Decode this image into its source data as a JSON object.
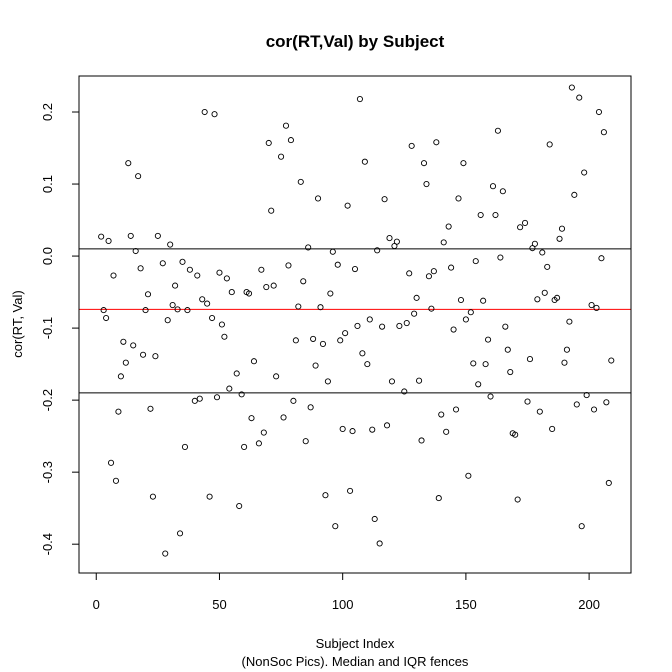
{
  "chart_data": {
    "type": "scatter",
    "title": "cor(RT,Val) by Subject",
    "xlabel": "Subject Index",
    "xlabel_sub": "(NonSoc Pics). Median and IQR fences",
    "ylabel": "cor(RT, Val)",
    "xlim": [
      -7,
      217
    ],
    "ylim": [
      -0.44,
      0.25
    ],
    "xticks": [
      0,
      50,
      100,
      150,
      200
    ],
    "yticks": [
      -0.4,
      -0.3,
      -0.2,
      -0.1,
      0.0,
      0.1,
      0.2
    ],
    "ytick_labels": [
      "-0.4",
      "-0.3",
      "-0.2",
      "-0.1",
      "0.0",
      "0.1",
      "0.2"
    ],
    "grid": false,
    "point_style": "open-circle",
    "reference_lines": [
      {
        "name": "upper IQR fence",
        "y": 0.01,
        "color": "#000000"
      },
      {
        "name": "median",
        "y": -0.074,
        "color": "#ff0000"
      },
      {
        "name": "lower IQR fence",
        "y": -0.19,
        "color": "#000000"
      }
    ],
    "points": [
      [
        2,
        0.027
      ],
      [
        3,
        -0.075
      ],
      [
        4,
        -0.086
      ],
      [
        5,
        0.021
      ],
      [
        6,
        -0.287
      ],
      [
        7,
        -0.027
      ],
      [
        8,
        -0.312
      ],
      [
        9,
        -0.216
      ],
      [
        10,
        -0.167
      ],
      [
        11,
        -0.119
      ],
      [
        12,
        -0.148
      ],
      [
        13,
        0.129
      ],
      [
        14,
        0.028
      ],
      [
        15,
        -0.124
      ],
      [
        16,
        0.007
      ],
      [
        17,
        0.111
      ],
      [
        18,
        -0.017
      ],
      [
        19,
        -0.137
      ],
      [
        20,
        -0.075
      ],
      [
        21,
        -0.053
      ],
      [
        22,
        -0.212
      ],
      [
        23,
        -0.334
      ],
      [
        24,
        -0.139
      ],
      [
        25,
        0.028
      ],
      [
        27,
        -0.01
      ],
      [
        28,
        -0.413
      ],
      [
        29,
        -0.089
      ],
      [
        30,
        0.016
      ],
      [
        31,
        -0.068
      ],
      [
        32,
        -0.041
      ],
      [
        33,
        -0.074
      ],
      [
        34,
        -0.385
      ],
      [
        35,
        -0.008
      ],
      [
        36,
        -0.265
      ],
      [
        37,
        -0.075
      ],
      [
        38,
        -0.019
      ],
      [
        40,
        -0.201
      ],
      [
        41,
        -0.027
      ],
      [
        42,
        -0.198
      ],
      [
        43,
        -0.06
      ],
      [
        44,
        0.2
      ],
      [
        45,
        -0.066
      ],
      [
        46,
        -0.334
      ],
      [
        47,
        -0.086
      ],
      [
        48,
        0.197
      ],
      [
        49,
        -0.196
      ],
      [
        50,
        -0.023
      ],
      [
        51,
        -0.095
      ],
      [
        52,
        -0.112
      ],
      [
        53,
        -0.031
      ],
      [
        54,
        -0.184
      ],
      [
        55,
        -0.05
      ],
      [
        57,
        -0.163
      ],
      [
        58,
        -0.347
      ],
      [
        59,
        -0.192
      ],
      [
        60,
        -0.265
      ],
      [
        61,
        -0.05
      ],
      [
        62,
        -0.052
      ],
      [
        63,
        -0.225
      ],
      [
        64,
        -0.146
      ],
      [
        66,
        -0.26
      ],
      [
        67,
        -0.019
      ],
      [
        68,
        -0.245
      ],
      [
        69,
        -0.043
      ],
      [
        70,
        0.157
      ],
      [
        71,
        0.063
      ],
      [
        72,
        -0.041
      ],
      [
        73,
        -0.167
      ],
      [
        75,
        0.138
      ],
      [
        76,
        -0.224
      ],
      [
        77,
        0.181
      ],
      [
        78,
        -0.013
      ],
      [
        79,
        0.161
      ],
      [
        80,
        -0.201
      ],
      [
        81,
        -0.117
      ],
      [
        82,
        -0.07
      ],
      [
        83,
        0.103
      ],
      [
        84,
        -0.035
      ],
      [
        85,
        -0.257
      ],
      [
        86,
        0.012
      ],
      [
        87,
        -0.21
      ],
      [
        88,
        -0.115
      ],
      [
        89,
        -0.152
      ],
      [
        90,
        0.08
      ],
      [
        91,
        -0.071
      ],
      [
        92,
        -0.122
      ],
      [
        93,
        -0.332
      ],
      [
        94,
        -0.174
      ],
      [
        95,
        -0.052
      ],
      [
        96,
        0.006
      ],
      [
        97,
        -0.375
      ],
      [
        98,
        -0.012
      ],
      [
        99,
        -0.117
      ],
      [
        100,
        -0.24
      ],
      [
        101,
        -0.107
      ],
      [
        102,
        0.07
      ],
      [
        103,
        -0.326
      ],
      [
        104,
        -0.243
      ],
      [
        105,
        -0.018
      ],
      [
        106,
        -0.097
      ],
      [
        107,
        0.218
      ],
      [
        108,
        -0.135
      ],
      [
        109,
        0.131
      ],
      [
        110,
        -0.15
      ],
      [
        111,
        -0.088
      ],
      [
        112,
        -0.241
      ],
      [
        113,
        -0.365
      ],
      [
        114,
        0.008
      ],
      [
        115,
        -0.399
      ],
      [
        116,
        -0.098
      ],
      [
        117,
        0.079
      ],
      [
        118,
        -0.235
      ],
      [
        119,
        0.025
      ],
      [
        120,
        -0.174
      ],
      [
        121,
        0.014
      ],
      [
        122,
        0.02
      ],
      [
        123,
        -0.097
      ],
      [
        125,
        -0.188
      ],
      [
        126,
        -0.093
      ],
      [
        127,
        -0.024
      ],
      [
        128,
        0.153
      ],
      [
        129,
        -0.08
      ],
      [
        130,
        -0.058
      ],
      [
        131,
        -0.173
      ],
      [
        132,
        -0.256
      ],
      [
        133,
        0.129
      ],
      [
        134,
        0.1
      ],
      [
        135,
        -0.028
      ],
      [
        136,
        -0.073
      ],
      [
        137,
        -0.021
      ],
      [
        138,
        0.158
      ],
      [
        139,
        -0.336
      ],
      [
        140,
        -0.22
      ],
      [
        141,
        0.019
      ],
      [
        142,
        -0.244
      ],
      [
        143,
        0.041
      ],
      [
        144,
        -0.016
      ],
      [
        145,
        -0.102
      ],
      [
        146,
        -0.213
      ],
      [
        147,
        0.08
      ],
      [
        148,
        -0.061
      ],
      [
        149,
        0.129
      ],
      [
        150,
        -0.088
      ],
      [
        151,
        -0.305
      ],
      [
        152,
        -0.078
      ],
      [
        153,
        -0.149
      ],
      [
        154,
        -0.007
      ],
      [
        155,
        -0.178
      ],
      [
        156,
        0.057
      ],
      [
        157,
        -0.062
      ],
      [
        158,
        -0.15
      ],
      [
        159,
        -0.116
      ],
      [
        160,
        -0.195
      ],
      [
        161,
        0.097
      ],
      [
        162,
        0.057
      ],
      [
        163,
        0.174
      ],
      [
        164,
        -0.002
      ],
      [
        165,
        0.09
      ],
      [
        166,
        -0.098
      ],
      [
        167,
        -0.13
      ],
      [
        168,
        -0.161
      ],
      [
        169,
        -0.246
      ],
      [
        170,
        -0.248
      ],
      [
        171,
        -0.338
      ],
      [
        172,
        0.04
      ],
      [
        174,
        0.046
      ],
      [
        175,
        -0.202
      ],
      [
        176,
        -0.143
      ],
      [
        177,
        0.011
      ],
      [
        178,
        0.017
      ],
      [
        179,
        -0.06
      ],
      [
        180,
        -0.216
      ],
      [
        181,
        0.005
      ],
      [
        182,
        -0.051
      ],
      [
        183,
        -0.015
      ],
      [
        184,
        0.155
      ],
      [
        185,
        -0.24
      ],
      [
        186,
        -0.061
      ],
      [
        187,
        -0.058
      ],
      [
        188,
        0.024
      ],
      [
        189,
        0.038
      ],
      [
        190,
        -0.148
      ],
      [
        191,
        -0.13
      ],
      [
        192,
        -0.091
      ],
      [
        193,
        0.234
      ],
      [
        194,
        0.085
      ],
      [
        195,
        -0.206
      ],
      [
        196,
        0.22
      ],
      [
        197,
        -0.375
      ],
      [
        198,
        0.116
      ],
      [
        199,
        -0.193
      ],
      [
        201,
        -0.068
      ],
      [
        202,
        -0.213
      ],
      [
        203,
        -0.072
      ],
      [
        204,
        0.2
      ],
      [
        205,
        -0.003
      ],
      [
        206,
        0.172
      ],
      [
        207,
        -0.203
      ],
      [
        208,
        -0.315
      ],
      [
        209,
        -0.145
      ]
    ]
  }
}
